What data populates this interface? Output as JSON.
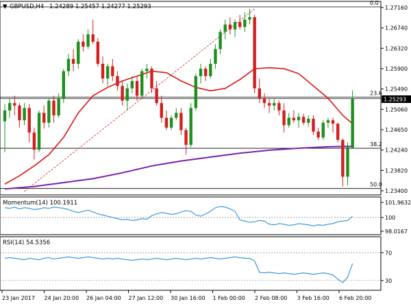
{
  "header": {
    "symbol": "GBPUSD,H4",
    "ohlc": "1.24289 1.25457 1.24277 1.25293"
  },
  "price_axis": {
    "ticks": [
      "1.27160",
      "1.26740",
      "1.26320",
      "1.25900",
      "1.25490",
      "1.25060",
      "1.24650",
      "1.24240",
      "1.23820",
      "1.23400"
    ],
    "current_price": "1.25293"
  },
  "fibonacci": {
    "levels": [
      {
        "label": "0.0",
        "price": 1.2716
      },
      {
        "label": "23.6",
        "price": 1.2532
      },
      {
        "label": "38.2",
        "price": 1.2428
      },
      {
        "label": "50.0",
        "price": 1.2346
      }
    ]
  },
  "momentum_panel": {
    "title": "Momentum(14) 100.1911",
    "ticks": [
      "101.9632",
      "100",
      "98.0167"
    ]
  },
  "rsi_panel": {
    "title": "RSI(14) 54.5356",
    "ticks": [
      "70",
      "30"
    ]
  },
  "time_axis": {
    "labels": [
      "23 Jan 2017",
      "24 Jan 20:00",
      "26 Jan 04:00",
      "27 Jan 12:00",
      "30 Jan 16:00",
      "1 Feb 00:00",
      "2 Feb 08:00",
      "3 Feb 16:00",
      "6 Feb 20:00"
    ]
  },
  "colors": {
    "bull": "#1f8f1f",
    "bear": "#d21f1f",
    "sma20": "#e01010",
    "sma200": "#7a1fb0",
    "indicator": "#2a8fd9"
  },
  "chart_data": {
    "type": "candlestick",
    "price_range": [
      1.234,
      1.2716
    ],
    "candles": [
      [
        1.2483,
        1.2518,
        1.242,
        1.2505
      ],
      [
        1.2505,
        1.2528,
        1.249,
        1.252
      ],
      [
        1.252,
        1.2535,
        1.2495,
        1.2515
      ],
      [
        1.2515,
        1.252,
        1.247,
        1.2485
      ],
      [
        1.2485,
        1.252,
        1.2475,
        1.251
      ],
      [
        1.251,
        1.2518,
        1.244,
        1.246
      ],
      [
        1.246,
        1.247,
        1.2405,
        1.2425
      ],
      [
        1.2425,
        1.2505,
        1.242,
        1.25
      ],
      [
        1.25,
        1.2515,
        1.2468,
        1.248
      ],
      [
        1.248,
        1.253,
        1.247,
        1.2525
      ],
      [
        1.2525,
        1.2535,
        1.248,
        1.2495
      ],
      [
        1.2495,
        1.254,
        1.249,
        1.253
      ],
      [
        1.253,
        1.259,
        1.252,
        1.2585
      ],
      [
        1.2585,
        1.262,
        1.2575,
        1.261
      ],
      [
        1.261,
        1.263,
        1.2585,
        1.26
      ],
      [
        1.26,
        1.265,
        1.259,
        1.2645
      ],
      [
        1.2645,
        1.266,
        1.2625,
        1.2635
      ],
      [
        1.2635,
        1.267,
        1.263,
        1.266
      ],
      [
        1.266,
        1.269,
        1.264,
        1.2645
      ],
      [
        1.2645,
        1.2652,
        1.2595,
        1.26
      ],
      [
        1.26,
        1.2615,
        1.256,
        1.257
      ],
      [
        1.257,
        1.26,
        1.2555,
        1.2595
      ],
      [
        1.2595,
        1.261,
        1.2565,
        1.2575
      ],
      [
        1.2575,
        1.2585,
        1.2545,
        1.2555
      ],
      [
        1.2555,
        1.2565,
        1.2515,
        1.2525
      ],
      [
        1.2525,
        1.256,
        1.2505,
        1.255
      ],
      [
        1.255,
        1.2575,
        1.254,
        1.2565
      ],
      [
        1.2565,
        1.2575,
        1.2525,
        1.2535
      ],
      [
        1.2535,
        1.259,
        1.253,
        1.2585
      ],
      [
        1.2585,
        1.26,
        1.257,
        1.259
      ],
      [
        1.259,
        1.2595,
        1.254,
        1.255
      ],
      [
        1.255,
        1.2565,
        1.2515,
        1.252
      ],
      [
        1.252,
        1.2535,
        1.248,
        1.249
      ],
      [
        1.249,
        1.2505,
        1.2465,
        1.247
      ],
      [
        1.247,
        1.2495,
        1.2465,
        1.249
      ],
      [
        1.249,
        1.251,
        1.2485,
        1.25
      ],
      [
        1.25,
        1.251,
        1.2455,
        1.2465
      ],
      [
        1.2465,
        1.247,
        1.2415,
        1.2435
      ],
      [
        1.2435,
        1.252,
        1.243,
        1.251
      ],
      [
        1.251,
        1.258,
        1.2505,
        1.2575
      ],
      [
        1.2575,
        1.26,
        1.256,
        1.259
      ],
      [
        1.259,
        1.2595,
        1.2565,
        1.2575
      ],
      [
        1.2575,
        1.261,
        1.257,
        1.26
      ],
      [
        1.26,
        1.264,
        1.259,
        1.263
      ],
      [
        1.263,
        1.267,
        1.262,
        1.2665
      ],
      [
        1.2665,
        1.269,
        1.265,
        1.268
      ],
      [
        1.268,
        1.2695,
        1.266,
        1.267
      ],
      [
        1.267,
        1.269,
        1.2655,
        1.2685
      ],
      [
        1.2685,
        1.27,
        1.267,
        1.2675
      ],
      [
        1.2675,
        1.2705,
        1.2665,
        1.269
      ],
      [
        1.269,
        1.2712,
        1.268,
        1.2695
      ],
      [
        1.2695,
        1.27,
        1.254,
        1.255
      ],
      [
        1.255,
        1.257,
        1.252,
        1.253
      ],
      [
        1.253,
        1.254,
        1.251,
        1.252
      ],
      [
        1.252,
        1.253,
        1.25,
        1.2515
      ],
      [
        1.2515,
        1.2528,
        1.2505,
        1.252
      ],
      [
        1.252,
        1.2525,
        1.2495,
        1.2505
      ],
      [
        1.2505,
        1.252,
        1.246,
        1.2475
      ],
      [
        1.2475,
        1.25,
        1.247,
        1.249
      ],
      [
        1.249,
        1.2505,
        1.248,
        1.2485
      ],
      [
        1.2485,
        1.25,
        1.247,
        1.2492
      ],
      [
        1.2492,
        1.2498,
        1.2475,
        1.248
      ],
      [
        1.248,
        1.2495,
        1.2472,
        1.2488
      ],
      [
        1.2488,
        1.2495,
        1.2455,
        1.2462
      ],
      [
        1.2462,
        1.247,
        1.2445,
        1.245
      ],
      [
        1.245,
        1.2485,
        1.2445,
        1.248
      ],
      [
        1.248,
        1.249,
        1.247,
        1.2485
      ],
      [
        1.2485,
        1.249,
        1.246,
        1.2478
      ],
      [
        1.2478,
        1.248,
        1.244,
        1.2445
      ],
      [
        1.2445,
        1.2448,
        1.235,
        1.237
      ],
      [
        1.237,
        1.244,
        1.2352,
        1.243
      ],
      [
        1.2429,
        1.2546,
        1.2428,
        1.2529
      ]
    ],
    "sma20_path": [
      [
        0,
        1.2355
      ],
      [
        3,
        1.2372
      ],
      [
        6,
        1.2392
      ],
      [
        9,
        1.2415
      ],
      [
        12,
        1.245
      ],
      [
        15,
        1.25
      ],
      [
        18,
        1.2535
      ],
      [
        21,
        1.2552
      ],
      [
        24,
        1.2565
      ],
      [
        27,
        1.2575
      ],
      [
        30,
        1.2585
      ],
      [
        33,
        1.2582
      ],
      [
        36,
        1.2565
      ],
      [
        39,
        1.2552
      ],
      [
        42,
        1.2545
      ],
      [
        45,
        1.255
      ],
      [
        48,
        1.2568
      ],
      [
        51,
        1.259
      ],
      [
        54,
        1.2592
      ],
      [
        57,
        1.259
      ],
      [
        60,
        1.258
      ],
      [
        63,
        1.2555
      ],
      [
        66,
        1.253
      ],
      [
        69,
        1.2495
      ],
      [
        71,
        1.2478
      ]
    ],
    "sma200_path": [
      [
        0,
        1.2345
      ],
      [
        6,
        1.235
      ],
      [
        12,
        1.2358
      ],
      [
        18,
        1.2366
      ],
      [
        24,
        1.2378
      ],
      [
        30,
        1.2392
      ],
      [
        36,
        1.2402
      ],
      [
        42,
        1.241
      ],
      [
        48,
        1.2418
      ],
      [
        54,
        1.2424
      ],
      [
        60,
        1.2428
      ],
      [
        66,
        1.2431
      ],
      [
        71,
        1.2432
      ]
    ],
    "fib_ray": [
      [
        4,
        1.234
      ],
      [
        51,
        1.2712
      ]
    ],
    "momentum": {
      "range": [
        97.4,
        102.8
      ],
      "values": [
        101.6,
        101.5,
        101.7,
        101.4,
        101.6,
        101.5,
        101.3,
        101.4,
        101.6,
        101.5,
        101.7,
        101.6,
        101.5,
        101.3,
        101.0,
        100.8,
        101.0,
        101.2,
        100.9,
        100.6,
        100.4,
        100.2,
        100.0,
        99.8,
        99.6,
        99.7,
        99.5,
        99.6,
        99.8,
        99.7,
        100.3,
        100.6,
        100.8,
        100.7,
        100.5,
        100.6,
        100.9,
        101.1,
        101.0,
        100.4,
        100.2,
        100.6,
        101.0,
        101.6,
        101.8,
        101.7,
        101.4,
        101.0,
        99.6,
        99.4,
        99.2,
        99.3,
        99.5,
        99.4,
        98.9,
        98.8,
        99.0,
        98.9,
        98.7,
        98.8,
        99.0,
        98.9,
        98.8,
        98.6,
        98.8,
        98.7,
        98.9,
        99.0,
        99.3,
        99.4,
        99.5,
        100.19
      ]
    },
    "rsi": {
      "range": [
        18,
        88
      ],
      "values": [
        62,
        63,
        62,
        61,
        60,
        62,
        61,
        60,
        62,
        63,
        61,
        62,
        63,
        64,
        63,
        62,
        63,
        64,
        63,
        62,
        61,
        62,
        61,
        62,
        61,
        60,
        59,
        60,
        61,
        60,
        61,
        62,
        61,
        60,
        61,
        62,
        61,
        60,
        61,
        62,
        61,
        62,
        63,
        62,
        61,
        62,
        63,
        64,
        63,
        62,
        62,
        58,
        42,
        41,
        42,
        41,
        40,
        41,
        40,
        39,
        40,
        41,
        40,
        39,
        40,
        41,
        40,
        38,
        32,
        27,
        35,
        54.5
      ]
    }
  }
}
